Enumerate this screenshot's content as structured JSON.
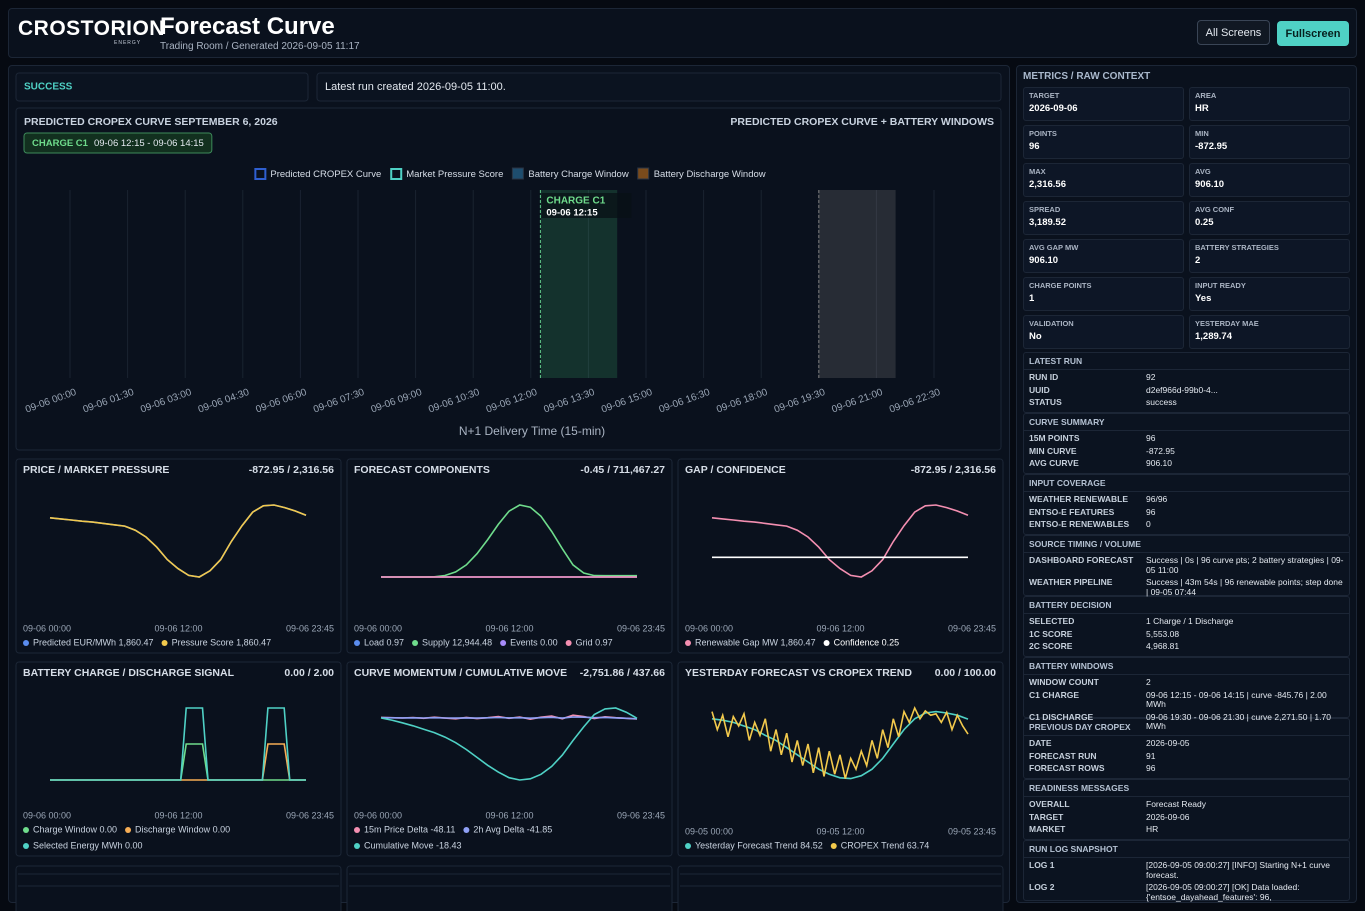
{
  "header": {
    "logo": "CROSTORION",
    "logo_sub": "ENERGY",
    "title": "Forecast Curve",
    "subtitle": "Trading Room / Generated 2026-09-05 11:17",
    "buttons": [
      "All Screens",
      "Fullscreen"
    ]
  },
  "status": {
    "badge": "SUCCESS",
    "message": "Latest run created 2026-09-05 11:00."
  },
  "main_chart": {
    "title": "PREDICTED CROPEX CURVE SEPTEMBER 6, 2026",
    "right_title": "PREDICTED CROPEX CURVE + BATTERY WINDOWS",
    "chip_label": "CHARGE C1",
    "chip_range": "09-06 12:15 - 09-06 14:15",
    "legend": [
      {
        "name": "Predicted CROPEX Curve",
        "color": "#2f5fd0",
        "marker": "outline"
      },
      {
        "name": "Market Pressure Score",
        "color": "#4fd1c5",
        "marker": "outline"
      },
      {
        "name": "Battery Charge Window",
        "color": "#1e4d6e",
        "marker": "filled"
      },
      {
        "name": "Battery Discharge Window",
        "color": "#7a4b1c",
        "marker": "filled"
      }
    ],
    "x_labels": [
      "09-06 00:00",
      "09-06 01:30",
      "09-06 03:00",
      "09-06 04:30",
      "09-06 06:00",
      "09-06 07:30",
      "09-06 09:00",
      "09-06 10:30",
      "09-06 12:00",
      "09-06 13:30",
      "09-06 15:00",
      "09-06 16:30",
      "09-06 18:00",
      "09-06 19:30",
      "09-06 21:00",
      "09-06 22:30"
    ],
    "x_title": "N+1 Delivery Time (15-min)",
    "annotation_label": "CHARGE C1",
    "annotation_time": "09-06 12:15"
  },
  "panels": [
    {
      "title": "PRICE / MARKET PRESSURE",
      "range_label": "-872.95 / 2,316.56",
      "ylim": [
        -872.95,
        2316.56
      ],
      "x_labels": [
        "09-06 00:00",
        "09-06 12:00",
        "09-06 23:45"
      ],
      "series": [
        {
          "name": "Predicted EUR/MWh 1,860.47",
          "color": "#5b8def",
          "values": [
            1750,
            1700,
            1650,
            1600,
            1560,
            1500,
            1440,
            1380,
            1200,
            900,
            450,
            -100,
            -500,
            -800,
            -872.95,
            -600,
            -100,
            700,
            1400,
            2000,
            2280,
            2316.56,
            2200,
            2050,
            1860.47
          ]
        },
        {
          "name": "Pressure Score 1,860.47",
          "color": "#f2c94c",
          "values": [
            1750,
            1700,
            1650,
            1600,
            1560,
            1500,
            1440,
            1380,
            1200,
            900,
            450,
            -100,
            -500,
            -800,
            -872.95,
            -600,
            -100,
            700,
            1400,
            2000,
            2280,
            2316.56,
            2200,
            2050,
            1860.47
          ]
        }
      ]
    },
    {
      "title": "FORECAST COMPONENTS",
      "range_label": "-0.45 / 711,467.27",
      "ylim": [
        -0.45,
        711467.27
      ],
      "x_labels": [
        "09-06 00:00",
        "09-06 12:00",
        "09-06 23:45"
      ],
      "series": [
        {
          "name": "Load 0.97",
          "color": "#5b8def",
          "values": [
            0.97,
            0.97,
            0.97,
            0.97,
            0.97,
            0.97,
            0.97,
            0.97,
            0.97,
            0.97,
            0.97,
            0.97,
            0.97,
            0.97,
            0.97,
            0.97,
            0.97,
            0.97,
            0.97,
            0.97,
            0.97,
            0.97,
            0.97,
            0.97,
            0.97
          ]
        },
        {
          "name": "Supply 12,944.48",
          "color": "#6fdc8c",
          "values": [
            0,
            0,
            0,
            0,
            0,
            2000,
            15000,
            50000,
            120000,
            230000,
            370000,
            520000,
            650000,
            711467.27,
            690000,
            600000,
            450000,
            280000,
            120000,
            40000,
            14000,
            12944.48,
            12944.48,
            12944.48,
            12944.48
          ]
        },
        {
          "name": "Events 0.00",
          "color": "#a78bfa",
          "values": [
            0,
            0,
            0,
            0,
            0,
            0,
            0,
            0,
            0,
            0,
            0,
            0,
            0,
            0,
            0,
            0,
            0,
            0,
            0,
            0,
            0,
            0,
            0,
            0,
            0
          ]
        },
        {
          "name": "Grid 0.97",
          "color": "#f48fb1",
          "values": [
            0.97,
            0.97,
            0.97,
            0.97,
            0.97,
            0.97,
            0.97,
            0.97,
            0.97,
            0.97,
            0.97,
            0.97,
            0.97,
            0.97,
            0.97,
            0.97,
            0.97,
            0.97,
            0.97,
            0.97,
            0.97,
            0.97,
            0.97,
            0.97,
            0.97
          ]
        }
      ]
    },
    {
      "title": "GAP / CONFIDENCE",
      "range_label": "-872.95 / 2,316.56",
      "ylim": [
        -872.95,
        2316.56
      ],
      "x_labels": [
        "09-06 00:00",
        "09-06 12:00",
        "09-06 23:45"
      ],
      "series": [
        {
          "name": "Renewable Gap MW 1,860.47",
          "color": "#f48fb1",
          "values": [
            1750,
            1700,
            1650,
            1600,
            1560,
            1500,
            1440,
            1380,
            1200,
            900,
            450,
            -100,
            -500,
            -800,
            -872.95,
            -600,
            -100,
            700,
            1400,
            2000,
            2280,
            2316.56,
            2200,
            2050,
            1860.47
          ]
        },
        {
          "name": "Confidence 0.25",
          "color": "#ffffff",
          "values": [
            0.25,
            0.25,
            0.25,
            0.25,
            0.25,
            0.25,
            0.25,
            0.25,
            0.25,
            0.25,
            0.25,
            0.25,
            0.25,
            0.25,
            0.25,
            0.25,
            0.25,
            0.25,
            0.25,
            0.25,
            0.25,
            0.25,
            0.25,
            0.25,
            0.25
          ]
        }
      ]
    },
    {
      "title": "BATTERY CHARGE / DISCHARGE SIGNAL",
      "range_label": "0.00 / 2.00",
      "ylim": [
        0,
        2
      ],
      "x_labels": [
        "09-06 00:00",
        "09-06 12:00",
        "09-06 23:45"
      ],
      "series": [
        {
          "name": "Charge Window 0.00",
          "color": "#6fdc8c",
          "values": [
            0,
            0,
            0,
            0,
            0,
            0,
            0,
            0,
            0,
            0,
            0,
            0,
            0,
            0,
            0,
            0,
            0,
            0,
            0,
            0,
            0,
            0,
            0,
            0,
            0,
            1,
            1,
            1,
            1,
            0,
            0,
            0,
            0,
            0,
            0,
            0,
            0,
            0,
            0,
            0,
            0,
            0,
            0,
            0,
            0,
            0,
            0,
            0
          ]
        },
        {
          "name": "Discharge Window 0.00",
          "color": "#f6ad55",
          "values": [
            0,
            0,
            0,
            0,
            0,
            0,
            0,
            0,
            0,
            0,
            0,
            0,
            0,
            0,
            0,
            0,
            0,
            0,
            0,
            0,
            0,
            0,
            0,
            0,
            0,
            0,
            0,
            0,
            0,
            0,
            0,
            0,
            0,
            0,
            0,
            0,
            0,
            0,
            0,
            0,
            1,
            1,
            1,
            1,
            0,
            0,
            0,
            0
          ]
        },
        {
          "name": "Selected Energy MWh 0.00",
          "color": "#4fd1c5",
          "values": [
            0,
            0,
            0,
            0,
            0,
            0,
            0,
            0,
            0,
            0,
            0,
            0,
            0,
            0,
            0,
            0,
            0,
            0,
            0,
            0,
            0,
            0,
            0,
            0,
            0,
            2,
            2,
            2,
            2,
            0,
            0,
            0,
            0,
            0,
            0,
            0,
            0,
            0,
            0,
            0,
            2,
            2,
            2,
            2,
            0,
            0,
            0,
            0
          ]
        }
      ]
    },
    {
      "title": "CURVE MOMENTUM / CUMULATIVE MOVE",
      "range_label": "-2,751.86 / 437.66",
      "ylim": [
        -2751.86,
        437.66
      ],
      "x_labels": [
        "09-06 00:00",
        "09-06 12:00",
        "09-06 23:45"
      ],
      "series": [
        {
          "name": "15m Price Delta -48.11",
          "color": "#f48fb1",
          "values": [
            20,
            10,
            -5,
            15,
            -20,
            30,
            -10,
            -40,
            20,
            -30,
            10,
            60,
            -20,
            40,
            -60,
            30,
            80,
            -40,
            120,
            60,
            -30,
            50,
            10,
            -20,
            -48.11
          ]
        },
        {
          "name": "2h Avg Delta -41.85",
          "color": "#8fa0f5",
          "values": [
            10,
            5,
            0,
            5,
            -5,
            10,
            -5,
            -10,
            0,
            -10,
            5,
            15,
            0,
            10,
            -15,
            10,
            25,
            -10,
            40,
            30,
            10,
            20,
            0,
            -20,
            -41.85
          ]
        },
        {
          "name": "Cumulative Move -18.43",
          "color": "#4fd1c5",
          "values": [
            0,
            -100,
            -220,
            -350,
            -500,
            -650,
            -850,
            -1100,
            -1400,
            -1750,
            -2100,
            -2400,
            -2650,
            -2751.86,
            -2700,
            -2500,
            -2150,
            -1650,
            -1000,
            -400,
            150,
            400,
            437.66,
            250,
            -18.43
          ]
        }
      ]
    },
    {
      "title": "YESTERDAY FORECAST VS CROPEX TREND",
      "range_label": "0.00 / 100.00",
      "ylim": [
        0,
        100
      ],
      "x_labels": [
        "09-05 00:00",
        "09-05 12:00",
        "09-05 23:45"
      ],
      "series": [
        {
          "name": "Yesterday Forecast Trend 84.52",
          "color": "#4fd1c5",
          "values": [
            85,
            83,
            80,
            75,
            70,
            62,
            55,
            45,
            35,
            25,
            15,
            8,
            3,
            2,
            6,
            15,
            30,
            50,
            70,
            85,
            93,
            95,
            93,
            90,
            84.52
          ]
        },
        {
          "name": "CROPEX Trend 63.74",
          "color": "#f2c94c",
          "values": [
            95,
            70,
            90,
            60,
            88,
            75,
            92,
            55,
            80,
            62,
            85,
            40,
            70,
            35,
            65,
            25,
            55,
            20,
            50,
            10,
            45,
            5,
            40,
            8,
            35,
            2,
            30,
            15,
            40,
            20,
            55,
            30,
            70,
            45,
            85,
            60,
            95,
            80,
            100,
            85,
            96,
            90,
            92,
            80,
            94,
            70,
            90,
            75,
            63.74
          ]
        }
      ]
    }
  ],
  "right": {
    "title": "METRICS / RAW CONTEXT",
    "tiles": [
      {
        "label": "TARGET",
        "value": "2026-09-06"
      },
      {
        "label": "AREA",
        "value": "HR"
      },
      {
        "label": "POINTS",
        "value": "96"
      },
      {
        "label": "MIN",
        "value": "-872.95"
      },
      {
        "label": "MAX",
        "value": "2,316.56"
      },
      {
        "label": "AVG",
        "value": "906.10"
      },
      {
        "label": "SPREAD",
        "value": "3,189.52"
      },
      {
        "label": "AVG CONF",
        "value": "0.25"
      },
      {
        "label": "AVG GAP MW",
        "value": "906.10"
      },
      {
        "label": "BATTERY STRATEGIES",
        "value": "2"
      },
      {
        "label": "CHARGE POINTS",
        "value": "1"
      },
      {
        "label": "INPUT READY",
        "value": "Yes"
      },
      {
        "label": "VALIDATION",
        "value": "No"
      },
      {
        "label": "YESTERDAY MAE",
        "value": "1,289.74"
      }
    ],
    "sections": [
      {
        "title": "LATEST RUN",
        "rows": [
          [
            "RUN ID",
            "92"
          ],
          [
            "UUID",
            "d2ef966d-99b0-4..."
          ],
          [
            "STATUS",
            "success"
          ]
        ]
      },
      {
        "title": "CURVE SUMMARY",
        "rows": [
          [
            "15M POINTS",
            "96"
          ],
          [
            "MIN CURVE",
            "-872.95"
          ],
          [
            "AVG CURVE",
            "906.10"
          ]
        ]
      },
      {
        "title": "INPUT COVERAGE",
        "rows": [
          [
            "WEATHER RENEWABLE",
            "96/96"
          ],
          [
            "ENTSO-E FEATURES",
            "96"
          ],
          [
            "ENTSO-E RENEWABLES",
            "0"
          ]
        ]
      },
      {
        "title": "SOURCE TIMING / VOLUME",
        "rows": [
          [
            "DASHBOARD FORECAST",
            "Success | 0s | 96 curve pts; 2 battery strategies | 09-05 11:00"
          ],
          [
            "WEATHER PIPELINE",
            "Success | 43m 54s | 96 renewable points; step done | 09-05 07:44"
          ]
        ]
      },
      {
        "title": "BATTERY DECISION",
        "rows": [
          [
            "SELECTED",
            "1 Charge / 1 Discharge"
          ],
          [
            "1C SCORE",
            "5,553.08"
          ],
          [
            "2C SCORE",
            "4,968.81"
          ]
        ]
      },
      {
        "title": "BATTERY WINDOWS",
        "rows": [
          [
            "WINDOW COUNT",
            "2"
          ],
          [
            "C1 CHARGE",
            "09-06 12:15 - 09-06 14:15 | curve -845.76 | 2.00 MWh"
          ],
          [
            "C1 DISCHARGE",
            "09-06 19:30 - 09-06 21:30 | curve 2,271.50 | 1.70 MWh"
          ]
        ]
      },
      {
        "title": "PREVIOUS DAY CROPEX",
        "rows": [
          [
            "DATE",
            "2026-09-05"
          ],
          [
            "FORECAST RUN",
            "91"
          ],
          [
            "FORECAST ROWS",
            "96"
          ]
        ]
      },
      {
        "title": "READINESS MESSAGES",
        "rows": [
          [
            "OVERALL",
            "Forecast Ready"
          ],
          [
            "TARGET",
            "2026-09-06"
          ],
          [
            "MARKET",
            "HR"
          ]
        ]
      },
      {
        "title": "RUN LOG SNAPSHOT",
        "rows": [
          [
            "LOG 1",
            "[2026-09-05 09:00:27] [INFO] Starting N+1 curve forecast."
          ],
          [
            "LOG 2",
            "[2026-09-05 09:00:27] [OK] Data loaded: {'entsoe_dayahead_features': 96,"
          ]
        ]
      }
    ]
  }
}
